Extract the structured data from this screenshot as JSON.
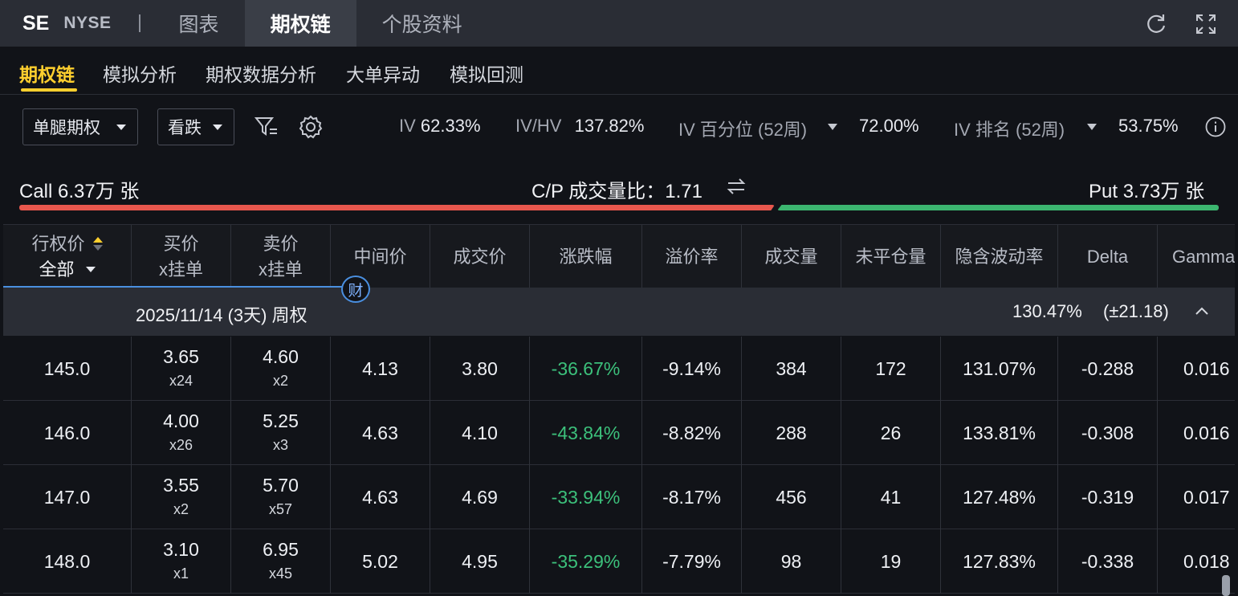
{
  "header": {
    "ticker": "SE",
    "exchange": "NYSE",
    "tabs": [
      {
        "label": "图表",
        "active": false
      },
      {
        "label": "期权链",
        "active": true
      },
      {
        "label": "个股资料",
        "active": false
      }
    ],
    "icons": [
      "refresh-icon",
      "fullscreen-icon"
    ]
  },
  "subtabs": [
    {
      "label": "期权链",
      "active": true
    },
    {
      "label": "模拟分析",
      "active": false
    },
    {
      "label": "期权数据分析",
      "active": false
    },
    {
      "label": "大单异动",
      "active": false
    },
    {
      "label": "模拟回测",
      "active": false
    }
  ],
  "controls": {
    "strategy_select": "单腿期权",
    "direction_select": "看跌",
    "icons": [
      "filter-icon",
      "settings-icon",
      "info-icon"
    ]
  },
  "metrics": {
    "iv_label": "IV",
    "iv_value": "62.33%",
    "ivhv_label": "IV/HV",
    "ivhv_value": "137.82%",
    "ivpct_label": "IV 百分位 (52周)",
    "ivpct_value": "72.00%",
    "ivrank_label": "IV 排名 (52周)",
    "ivrank_value": "53.75%"
  },
  "volume_summary": {
    "call_text": "Call 6.37万 张",
    "ratio_text": "C/P 成交量比：1.71",
    "put_text": "Put 3.73万 张",
    "call_color": "#e8574d",
    "put_color": "#3cb670"
  },
  "table": {
    "headers": {
      "strike": "行权价",
      "strike_filter": "全部",
      "bid": "买价",
      "bid_sub": "x挂单",
      "ask": "卖价",
      "ask_sub": "x挂单",
      "mid": "中间价",
      "last": "成交价",
      "change": "涨跌幅",
      "premium": "溢价率",
      "volume": "成交量",
      "oi": "未平仓量",
      "iv": "隐含波动率",
      "delta": "Delta",
      "gamma": "Gamma"
    },
    "earnings_badge": "财",
    "group": {
      "expiry": "2025/11/14 (3天) 周权",
      "iv_text": "130.47%",
      "iv_range": "(±21.18)"
    },
    "rows": [
      {
        "strike": "145.0",
        "bid": "3.65",
        "bid_size": "x24",
        "ask": "4.60",
        "ask_size": "x2",
        "mid": "4.13",
        "last": "3.80",
        "change": "-36.67%",
        "premium": "-9.14%",
        "volume": "384",
        "oi": "172",
        "iv": "131.07%",
        "delta": "-0.288",
        "gamma": "0.016"
      },
      {
        "strike": "146.0",
        "bid": "4.00",
        "bid_size": "x26",
        "ask": "5.25",
        "ask_size": "x3",
        "mid": "4.63",
        "last": "4.10",
        "change": "-43.84%",
        "premium": "-8.82%",
        "volume": "288",
        "oi": "26",
        "iv": "133.81%",
        "delta": "-0.308",
        "gamma": "0.016"
      },
      {
        "strike": "147.0",
        "bid": "3.55",
        "bid_size": "x2",
        "ask": "5.70",
        "ask_size": "x57",
        "mid": "4.63",
        "last": "4.69",
        "change": "-33.94%",
        "premium": "-8.17%",
        "volume": "456",
        "oi": "41",
        "iv": "127.48%",
        "delta": "-0.319",
        "gamma": "0.017"
      },
      {
        "strike": "148.0",
        "bid": "3.10",
        "bid_size": "x1",
        "ask": "6.95",
        "ask_size": "x45",
        "mid": "5.02",
        "last": "4.95",
        "change": "-35.29%",
        "premium": "-7.79%",
        "volume": "98",
        "oi": "19",
        "iv": "127.83%",
        "delta": "-0.338",
        "gamma": "0.018"
      }
    ]
  }
}
